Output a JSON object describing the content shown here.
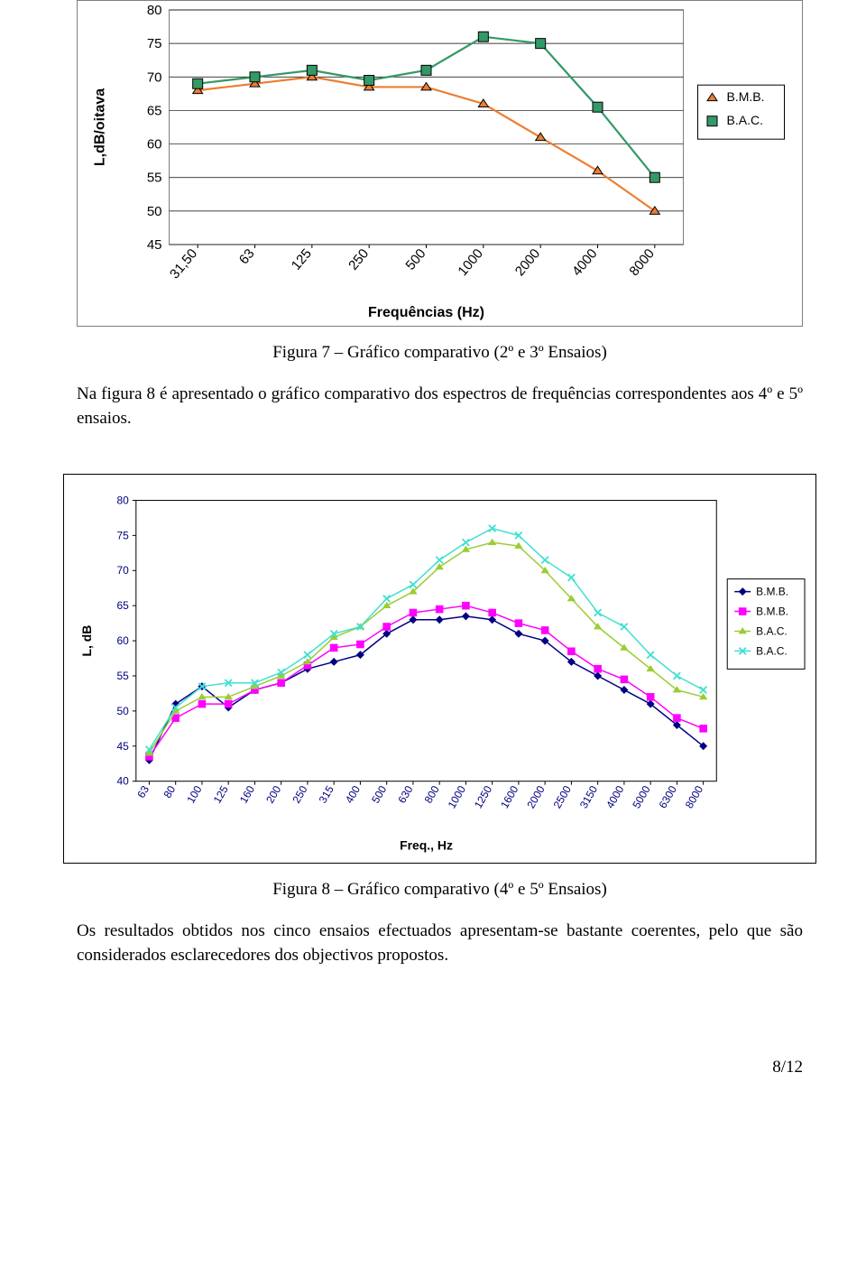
{
  "chart1": {
    "type": "line",
    "ylabel": "L,dB/oitava",
    "xlabel": "Frequências (Hz)",
    "y_ticks": [
      45,
      50,
      55,
      60,
      65,
      70,
      75,
      80
    ],
    "x_cats": [
      "31,50",
      "63",
      "125",
      "250",
      "500",
      "1000",
      "2000",
      "4000",
      "8000"
    ],
    "axis_label_fontsize": 16,
    "tick_fontsize": 15,
    "background": "#ffffff",
    "plot_border_color": "#7f7f7f",
    "grid_color": "#000000",
    "series": [
      {
        "name": "B.M.B.",
        "color": "#ed7d31",
        "marker": "triangle",
        "line_width": 2.2,
        "values": [
          68,
          69,
          70,
          68.5,
          68.5,
          66,
          61,
          56,
          50
        ]
      },
      {
        "name": "B.A.C.",
        "color": "#339966",
        "marker": "square",
        "line_width": 2.2,
        "values": [
          69,
          70,
          71,
          69.5,
          71,
          76,
          75,
          65.5,
          55
        ]
      }
    ],
    "legend": {
      "items": [
        "B.M.B.",
        "B.A.C."
      ],
      "marker_colors": [
        "#ed7d31",
        "#339966"
      ],
      "markers": [
        "triangle",
        "square"
      ]
    }
  },
  "caption1": "Figura 7 – Gráfico comparativo (2º e 3º Ensaios)",
  "para1": "Na figura 8 é apresentado o gráfico comparativo dos espectros de frequências correspondentes aos 4º e 5º ensaios.",
  "chart2": {
    "type": "line",
    "ylabel": "L, dB",
    "xlabel": "Freq., Hz",
    "y_ticks": [
      40,
      45,
      50,
      55,
      60,
      65,
      70,
      75,
      80
    ],
    "x_cats": [
      "63",
      "80",
      "100",
      "125",
      "160",
      "200",
      "250",
      "315",
      "400",
      "500",
      "630",
      "800",
      "1000",
      "1250",
      "1600",
      "2000",
      "2500",
      "3150",
      "4000",
      "5000",
      "6300",
      "8000"
    ],
    "axis_label_fontsize": 14,
    "tick_fontsize": 12,
    "tick_color": "#000080",
    "background": "#ffffff",
    "plot_border_color": "#000000",
    "series": [
      {
        "name": "B.M.B.",
        "color": "#000080",
        "marker": "diamond",
        "line_width": 1.5,
        "values": [
          43,
          51,
          53.5,
          50.5,
          53,
          54,
          56,
          57,
          58,
          61,
          63,
          63,
          63.5,
          63,
          61,
          60,
          57,
          55,
          53,
          51,
          48,
          45
        ]
      },
      {
        "name": "B.M.B.",
        "color": "#ff00ff",
        "marker": "square",
        "line_width": 1.5,
        "values": [
          43.5,
          49,
          51,
          51,
          53,
          54,
          56.5,
          59,
          59.5,
          62,
          64,
          64.5,
          65,
          64,
          62.5,
          61.5,
          58.5,
          56,
          54.5,
          52,
          49,
          47.5
        ]
      },
      {
        "name": "B.A.C.",
        "color": "#9acd32",
        "marker": "triangle",
        "line_width": 1.5,
        "values": [
          44,
          50,
          52,
          52,
          53.5,
          55,
          57,
          60.5,
          62,
          65,
          67,
          70.5,
          73,
          74,
          73.5,
          70,
          66,
          62,
          59,
          56,
          53,
          52
        ]
      },
      {
        "name": "B.A.C.",
        "color": "#40e0d0",
        "marker": "x",
        "line_width": 1.5,
        "values": [
          44.5,
          50.5,
          53.5,
          54,
          54,
          55.5,
          58,
          61,
          62,
          66,
          68,
          71.5,
          74,
          76,
          75,
          71.5,
          69,
          64,
          62,
          58,
          55,
          53
        ]
      }
    ],
    "legend": {
      "items": [
        "B.M.B.",
        "B.M.B.",
        "B.A.C.",
        "B.A.C."
      ],
      "colors": [
        "#000080",
        "#ff00ff",
        "#9acd32",
        "#40e0d0"
      ],
      "markers": [
        "diamond",
        "square",
        "triangle",
        "x"
      ]
    }
  },
  "caption2": "Figura 8 – Gráfico comparativo (4º e 5º Ensaios)",
  "para2": "Os resultados obtidos nos cinco ensaios efectuados apresentam-se bastante coerentes, pelo que são considerados esclarecedores dos objectivos propostos.",
  "page_number": "8/12"
}
